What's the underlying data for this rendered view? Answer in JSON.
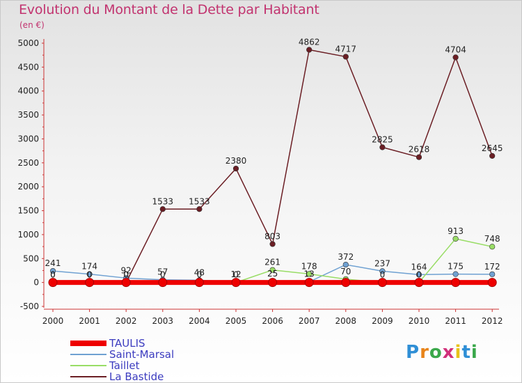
{
  "title": "Evolution du Montant de la Dette par Habitant",
  "unit": "(en €)",
  "logo": {
    "text": "Proxiti",
    "letter_colors": [
      "#2f8fd6",
      "#e8841a",
      "#3aa84a",
      "#d1307a",
      "#e8c21a",
      "#2f8fd6",
      "#3aa84a"
    ]
  },
  "chart_data": {
    "type": "line",
    "title": "Evolution du Montant de la Dette par Habitant",
    "ylabel": "(en €)",
    "xlabel": "",
    "ylim": [
      -500,
      5000
    ],
    "yticks": [
      -500,
      0,
      500,
      1000,
      1500,
      2000,
      2500,
      3000,
      3500,
      4000,
      4500,
      5000
    ],
    "categories": [
      "2000",
      "2001",
      "2002",
      "2003",
      "2004",
      "2005",
      "2006",
      "2007",
      "2008",
      "2009",
      "2010",
      "2011",
      "2012"
    ],
    "grid": false,
    "legend_position": "bottom-left",
    "series": [
      {
        "name": "TAULIS",
        "color": "#ee0000",
        "values": [
          0,
          0,
          0,
          0,
          0,
          0,
          0,
          0,
          0,
          0,
          0,
          0,
          0
        ],
        "labels": [
          "",
          "",
          "",
          "",
          "",
          "",
          "",
          "",
          "",
          "",
          "",
          "",
          ""
        ]
      },
      {
        "name": "Saint-Marsal",
        "color": "#6fa1d2",
        "values": [
          241,
          174,
          92,
          57,
          48,
          12,
          25,
          13,
          372,
          237,
          164,
          175,
          172
        ],
        "labels": [
          "241",
          "174",
          "92",
          "57",
          "48",
          "12",
          "25",
          "13",
          "372",
          "237",
          "164",
          "175",
          "172"
        ]
      },
      {
        "name": "Taillet",
        "color": "#99dd66",
        "values": [
          0,
          0,
          0,
          0,
          0,
          0,
          261,
          178,
          70,
          0,
          0,
          913,
          748
        ],
        "labels": [
          "0",
          "0",
          "0",
          "0",
          "0",
          "0",
          "261",
          "178",
          "70",
          "0",
          "0",
          "913",
          "748"
        ]
      },
      {
        "name": "La Bastide",
        "color": "#6b1e24",
        "values": [
          0,
          0,
          0,
          1533,
          1533,
          2380,
          803,
          4862,
          4717,
          2825,
          2618,
          4704,
          2645
        ],
        "labels": [
          "0",
          "0",
          "0",
          "1533",
          "1533",
          "2380",
          "803",
          "4862",
          "4717",
          "2825",
          "2618",
          "4704",
          "2645"
        ]
      }
    ]
  }
}
